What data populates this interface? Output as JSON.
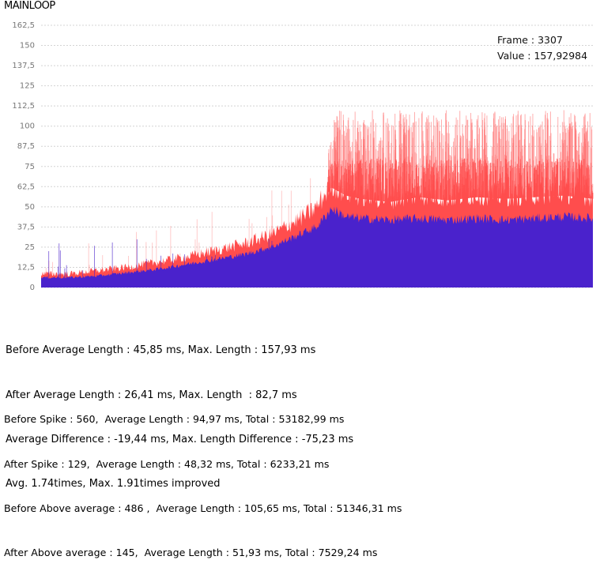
{
  "chart_data": {
    "type": "area",
    "title": "MAINLOOP",
    "xlabel": "",
    "ylabel": "",
    "ylim": [
      0,
      162.5
    ],
    "y_ticks": [
      "162,5",
      "150",
      "137,5",
      "125",
      "112,5",
      "100",
      "87,5",
      "75",
      "62,5",
      "50",
      "37,5",
      "25",
      "12,5",
      "0"
    ],
    "grid": true,
    "x_range": [
      0,
      3800
    ],
    "series": [
      {
        "color": "#ff4d4d",
        "x": [
          0,
          200,
          400,
          600,
          800,
          1000,
          1200,
          1400,
          1600,
          1800,
          1900,
          2000,
          2100,
          2200,
          2400,
          2600,
          2800,
          3000,
          3200,
          3400,
          3600,
          3800
        ],
        "values": [
          8,
          8,
          10,
          12,
          15,
          18,
          22,
          26,
          32,
          42,
          48,
          62,
          57,
          55,
          53,
          56,
          54,
          56,
          55,
          56,
          57,
          55
        ]
      },
      {
        "color": "#4a22cc",
        "x": [
          0,
          200,
          400,
          600,
          800,
          1000,
          1200,
          1400,
          1600,
          1800,
          1900,
          2000,
          2100,
          2200,
          2400,
          2600,
          2800,
          3000,
          3200,
          3400,
          3600,
          3800
        ],
        "values": [
          6,
          6,
          7,
          9,
          11,
          14,
          17,
          20,
          25,
          33,
          37,
          48,
          43,
          42,
          41,
          42,
          41,
          42,
          41,
          42,
          43,
          42
        ]
      }
    ],
    "tooltip": {
      "frame_line": "Frame : 3307",
      "value_line": "Value : 157,92984",
      "frame": 3307,
      "value": 157.92984
    }
  },
  "stats": {
    "lines_a": [
      "Before Average Length : 45,85 ms, Max. Length : 157,93 ms",
      "After Average Length : 26,41 ms, Max. Length  : 82,7 ms",
      "Average Difference : -19,44 ms, Max. Length Difference : -75,23 ms",
      "Avg. 1.74times, Max. 1.91times improved"
    ],
    "lines_b": [
      "Before Spike : 560,  Average Length : 94,97 ms, Total : 53182,99 ms",
      "After Spike : 129,  Average Length : 48,32 ms, Total : 6233,21 ms",
      "Before Above average : 486 ,  Average Length : 105,65 ms, Total : 51346,31 ms",
      "After Above average : 145,  Average Length : 51,93 ms, Total : 7529,24 ms"
    ]
  }
}
